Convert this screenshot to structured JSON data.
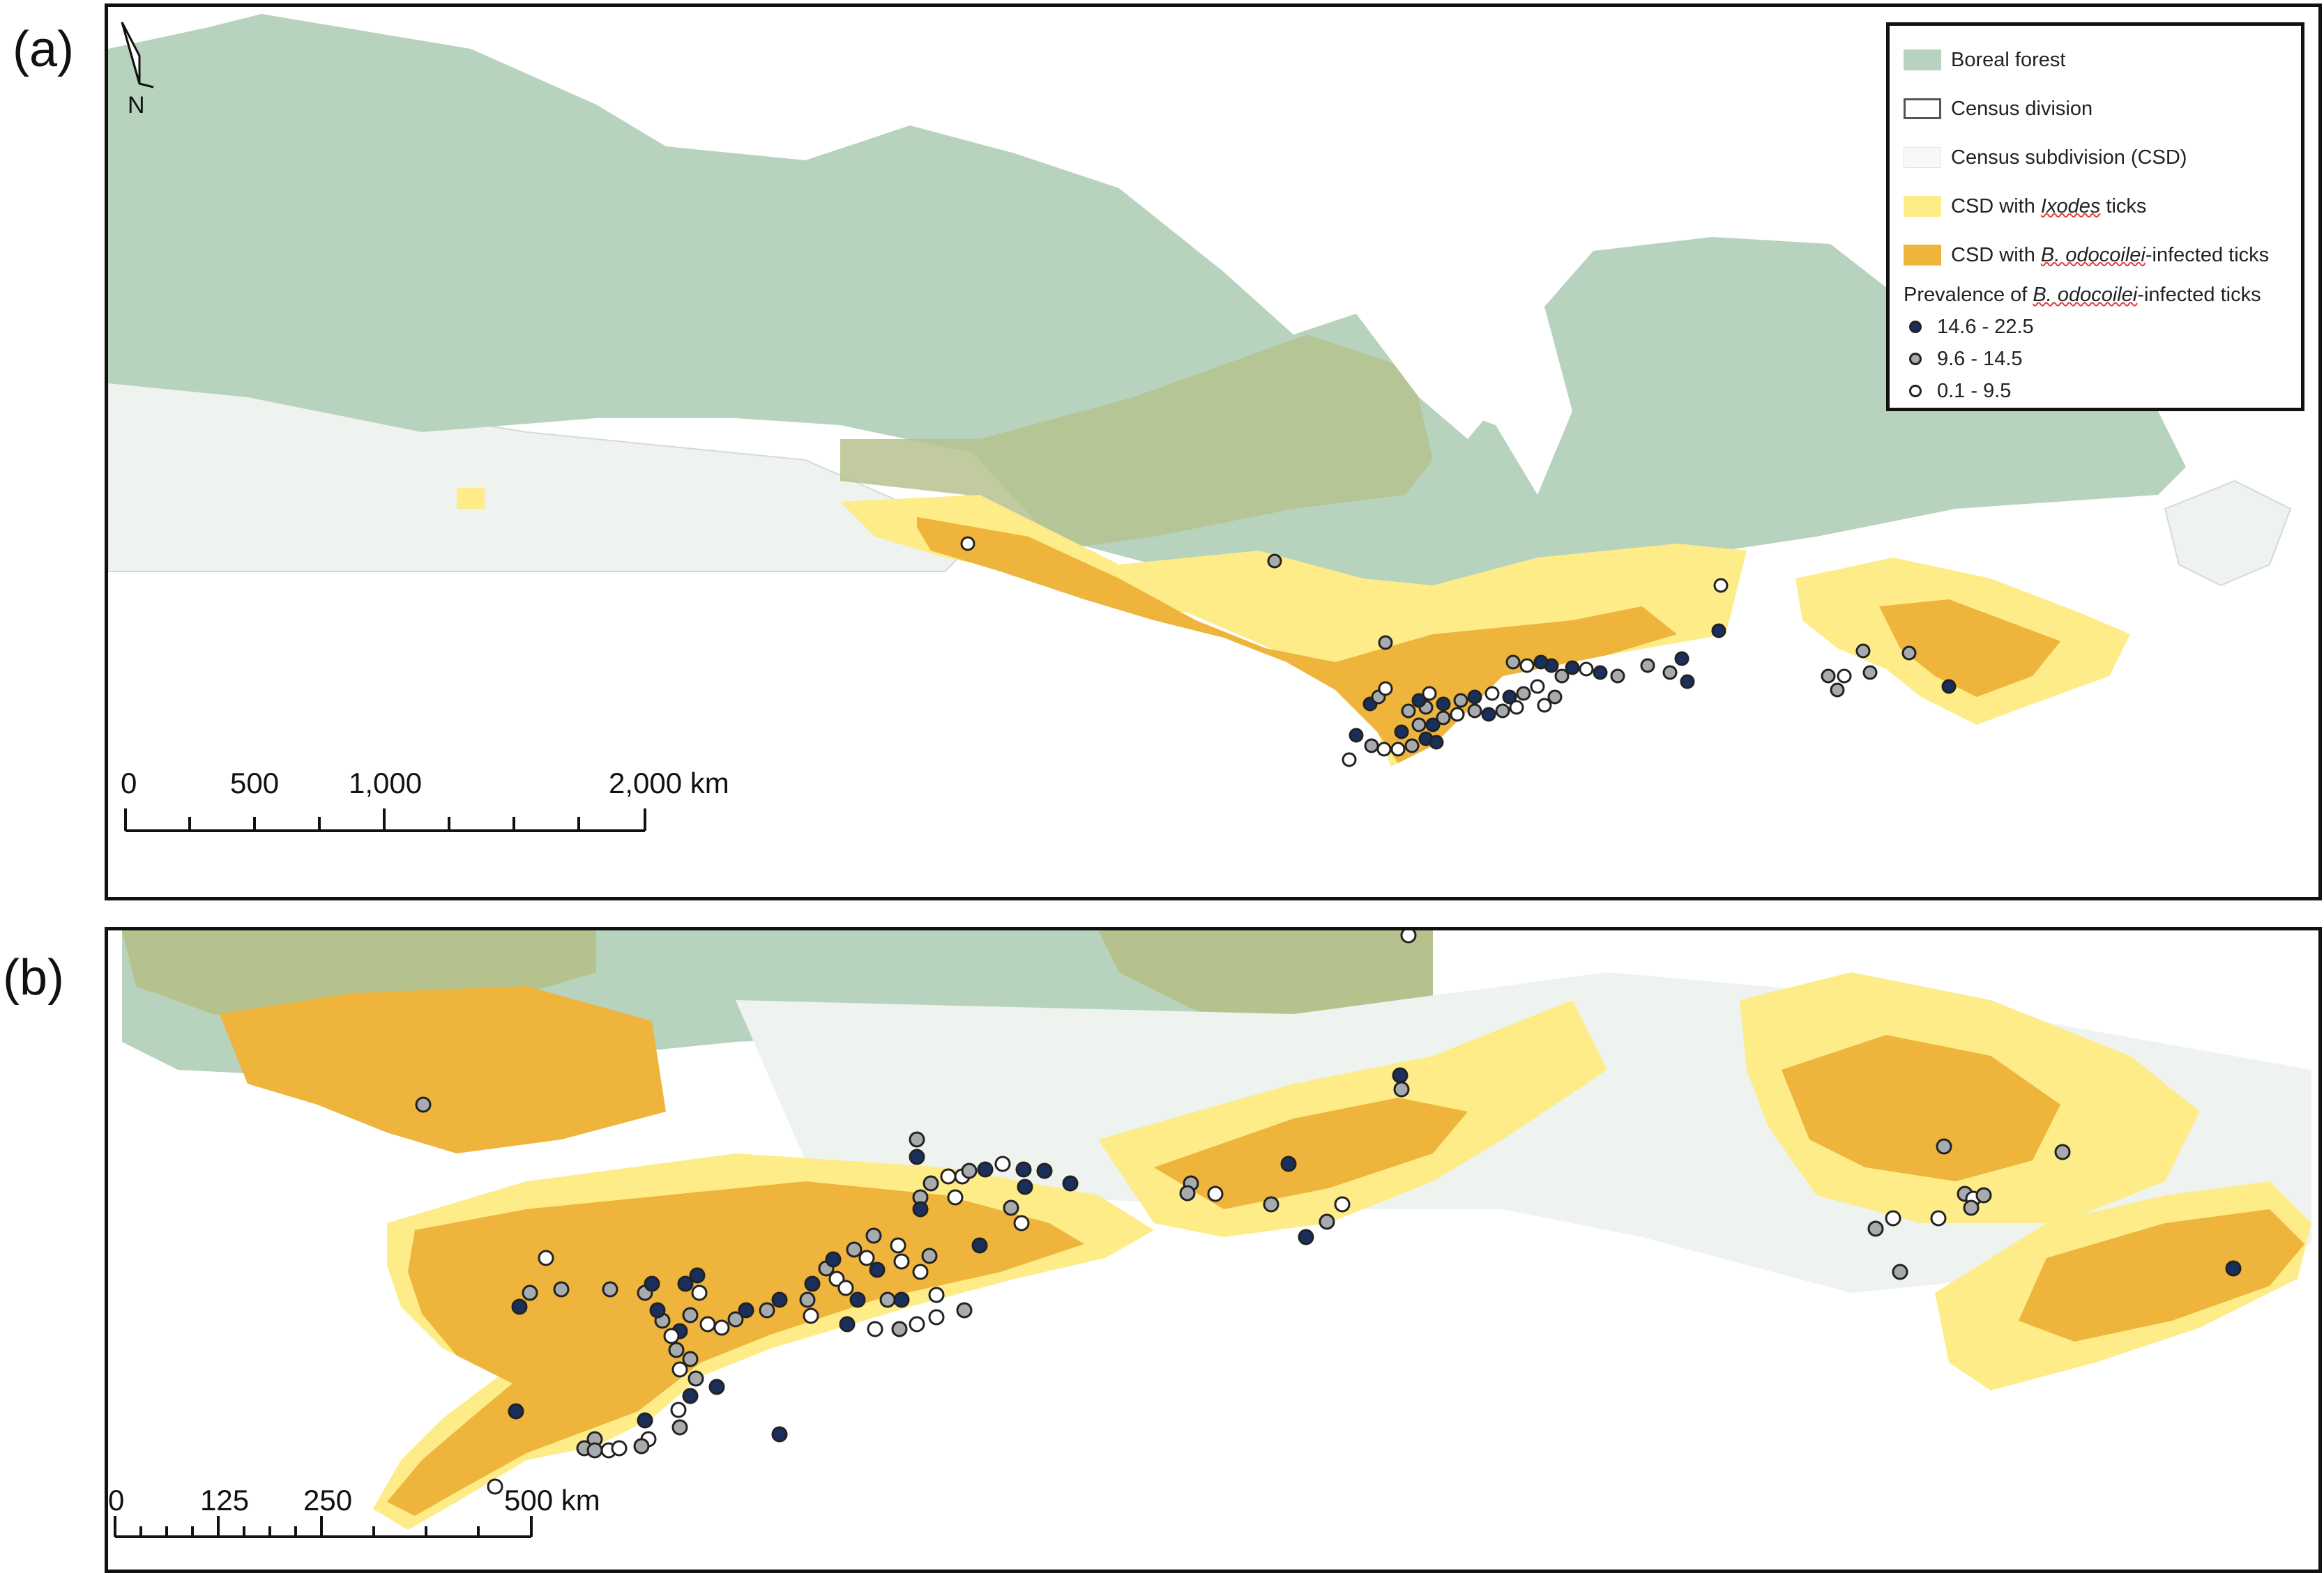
{
  "panels": [
    {
      "label": "(a)"
    },
    {
      "label": "(b)"
    }
  ],
  "north_arrow": {
    "letter": "N"
  },
  "legend": {
    "items": [
      {
        "label": "Boreal forest",
        "color": "#b7d3bd"
      },
      {
        "label": "Census division",
        "color": "#ffffff"
      },
      {
        "label": "Census subdivision (CSD)",
        "color": "#f7f8f7"
      },
      {
        "label_pre": "CSD with ",
        "label_em": "Ixodes",
        "label_post": " ticks",
        "color": "#fdec87"
      },
      {
        "label_pre": "CSD with ",
        "label_em": "B. odocoilei",
        "label_post": "-infected ticks",
        "color": "#eeb43b"
      }
    ],
    "prevalence_title_pre": "Prevalence of ",
    "prevalence_title_em": "B. odocoilei",
    "prevalence_title_post": "-infected ticks",
    "classes": [
      {
        "label": "14.6 - 22.5",
        "color": "#1a2f5c"
      },
      {
        "label": "9.6 - 14.5",
        "color": "#a8abae"
      },
      {
        "label": "0.1 - 9.5",
        "color": "#ffffff"
      }
    ]
  },
  "scale_a": {
    "ticks": [
      "0",
      "500",
      "1,000",
      "2,000 km"
    ]
  },
  "scale_b": {
    "ticks": [
      "0",
      "125",
      "250",
      "500 km"
    ]
  },
  "colors": {
    "boreal": "#b7d3bd",
    "boreal_overlap": "#b6c28e",
    "land": "#eef3ef",
    "ixodes": "#fdec87",
    "infected": "#eeb43b",
    "high": "#1a2f5c",
    "mid": "#a8abae",
    "low": "#ffffff"
  }
}
